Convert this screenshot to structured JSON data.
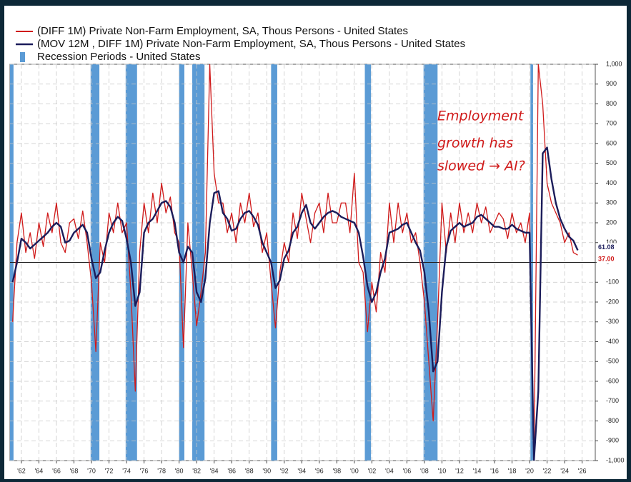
{
  "chart_data": {
    "type": "line",
    "xlim": [
      1960.7,
      2027.5
    ],
    "ylim": [
      -1000,
      1000
    ],
    "grid": true,
    "recession_name": "Recession Periods - United States",
    "recession_color": "#5b9bd5",
    "recessions": [
      [
        1960.3,
        1961.1
      ],
      [
        1969.9,
        1970.9
      ],
      [
        1973.9,
        1975.2
      ],
      [
        1980.0,
        1980.6
      ],
      [
        1981.5,
        1982.9
      ],
      [
        1990.5,
        1991.2
      ],
      [
        2001.2,
        2001.9
      ],
      [
        2007.9,
        2009.5
      ],
      [
        2020.1,
        2020.4
      ]
    ],
    "annotation": [
      "Employment",
      "growth has",
      "slowed → AI?"
    ],
    "end_labels": [
      {
        "value": 61.08,
        "label": "61.08"
      },
      {
        "value": 37,
        "label": "37.00"
      }
    ],
    "xticks": [
      {
        "value": 1962,
        "label": "'62"
      },
      {
        "value": 1964,
        "label": "'64"
      },
      {
        "value": 1966,
        "label": "'66"
      },
      {
        "value": 1968,
        "label": "'68"
      },
      {
        "value": 1970,
        "label": "'70"
      },
      {
        "value": 1972,
        "label": "'72"
      },
      {
        "value": 1974,
        "label": "'74"
      },
      {
        "value": 1976,
        "label": "'76"
      },
      {
        "value": 1978,
        "label": "'78"
      },
      {
        "value": 1980,
        "label": "'80"
      },
      {
        "value": 1982,
        "label": "'82"
      },
      {
        "value": 1984,
        "label": "'84"
      },
      {
        "value": 1986,
        "label": "'86"
      },
      {
        "value": 1988,
        "label": "'88"
      },
      {
        "value": 1990,
        "label": "'90"
      },
      {
        "value": 1992,
        "label": "'92"
      },
      {
        "value": 1994,
        "label": "'94"
      },
      {
        "value": 1996,
        "label": "'96"
      },
      {
        "value": 1998,
        "label": "'98"
      },
      {
        "value": 2000,
        "label": "'00"
      },
      {
        "value": 2002,
        "label": "'02"
      },
      {
        "value": 2004,
        "label": "'04"
      },
      {
        "value": 2006,
        "label": "'06"
      },
      {
        "value": 2008,
        "label": "'08"
      },
      {
        "value": 2010,
        "label": "'10"
      },
      {
        "value": 2012,
        "label": "'12"
      },
      {
        "value": 2014,
        "label": "'14"
      },
      {
        "value": 2016,
        "label": "'16"
      },
      {
        "value": 2018,
        "label": "'18"
      },
      {
        "value": 2020,
        "label": "'20"
      },
      {
        "value": 2022,
        "label": "'22"
      },
      {
        "value": 2024,
        "label": "'24"
      },
      {
        "value": 2026,
        "label": "'26"
      }
    ],
    "yticks": [
      {
        "value": -1000,
        "label": "-1,000"
      },
      -900,
      -800,
      -700,
      -600,
      -500,
      -400,
      -300,
      -200,
      -100,
      0,
      100,
      200,
      300,
      400,
      500,
      600,
      700,
      800,
      900,
      {
        "value": 1000,
        "label": "1,000"
      }
    ],
    "x": [
      1961,
      1961.5,
      1962,
      1962.5,
      1963,
      1963.5,
      1964,
      1964.5,
      1965,
      1965.5,
      1966,
      1966.5,
      1967,
      1967.5,
      1968,
      1968.5,
      1969,
      1969.5,
      1970,
      1970.5,
      1971,
      1971.5,
      1972,
      1972.5,
      1973,
      1973.5,
      1974,
      1974.5,
      1975,
      1975.5,
      1976,
      1976.5,
      1977,
      1977.5,
      1978,
      1978.5,
      1979,
      1979.5,
      1980,
      1980.5,
      1981,
      1981.5,
      1982,
      1982.5,
      1983,
      1983.5,
      1984,
      1984.5,
      1985,
      1985.5,
      1986,
      1986.5,
      1987,
      1987.5,
      1988,
      1988.5,
      1989,
      1989.5,
      1990,
      1990.5,
      1991,
      1991.5,
      1992,
      1992.5,
      1993,
      1993.5,
      1994,
      1994.5,
      1995,
      1995.5,
      1996,
      1996.5,
      1997,
      1997.5,
      1998,
      1998.5,
      1999,
      1999.5,
      2000,
      2000.5,
      2001,
      2001.5,
      2002,
      2002.5,
      2003,
      2003.5,
      2004,
      2004.5,
      2005,
      2005.5,
      2006,
      2006.5,
      2007,
      2007.5,
      2008,
      2008.5,
      2009,
      2009.5,
      2010,
      2010.5,
      2011,
      2011.5,
      2012,
      2012.5,
      2013,
      2013.5,
      2014,
      2014.5,
      2015,
      2015.5,
      2016,
      2016.5,
      2017,
      2017.5,
      2018,
      2018.5,
      2019,
      2019.5,
      2020,
      2020.5,
      2021,
      2021.5,
      2022,
      2022.5,
      2023,
      2023.5,
      2024,
      2024.5,
      2025,
      2025.5
    ],
    "series": [
      {
        "name": "(DIFF 1M) Private Non-Farm Employment, SA, Thous Persons - United States",
        "color": "#d01a1a",
        "width": 1.3,
        "values": [
          -300,
          100,
          250,
          50,
          150,
          20,
          200,
          80,
          250,
          150,
          300,
          100,
          50,
          200,
          220,
          120,
          260,
          100,
          -100,
          -450,
          100,
          0,
          250,
          150,
          300,
          150,
          200,
          -150,
          -650,
          50,
          300,
          150,
          350,
          200,
          400,
          250,
          330,
          150,
          100,
          -430,
          200,
          -50,
          -320,
          -150,
          50,
          1000,
          450,
          300,
          300,
          150,
          250,
          100,
          300,
          200,
          350,
          180,
          250,
          50,
          150,
          -100,
          -330,
          -50,
          100,
          0,
          250,
          120,
          350,
          220,
          100,
          250,
          300,
          150,
          350,
          200,
          200,
          300,
          300,
          150,
          450,
          0,
          -50,
          -350,
          -100,
          -250,
          50,
          -50,
          300,
          100,
          300,
          150,
          250,
          100,
          150,
          0,
          -200,
          -500,
          -800,
          -300,
          300,
          50,
          250,
          100,
          300,
          150,
          250,
          150,
          300,
          200,
          280,
          150,
          200,
          250,
          220,
          120,
          250,
          150,
          200,
          100,
          250,
          -1000,
          1000,
          800,
          400,
          300,
          250,
          200,
          100,
          150,
          50,
          37
        ]
      },
      {
        "name": "(MOV 12M , DIFF 1M) Private Non-Farm Employment, SA, Thous Persons - United States",
        "color": "#1b1c5a",
        "width": 2.4,
        "values": [
          -100,
          0,
          120,
          100,
          70,
          90,
          110,
          130,
          150,
          180,
          200,
          180,
          100,
          110,
          150,
          170,
          190,
          150,
          20,
          -80,
          -50,
          60,
          150,
          200,
          230,
          210,
          120,
          0,
          -220,
          -150,
          150,
          200,
          220,
          260,
          300,
          310,
          280,
          200,
          50,
          0,
          80,
          50,
          -150,
          -200,
          -80,
          200,
          350,
          360,
          250,
          220,
          160,
          170,
          220,
          250,
          260,
          230,
          190,
          100,
          50,
          0,
          -130,
          -90,
          20,
          60,
          150,
          180,
          250,
          290,
          200,
          170,
          200,
          230,
          250,
          260,
          250,
          230,
          220,
          210,
          200,
          150,
          30,
          -120,
          -200,
          -150,
          -50,
          20,
          150,
          160,
          170,
          190,
          200,
          150,
          100,
          60,
          -50,
          -250,
          -550,
          -500,
          -150,
          80,
          160,
          180,
          200,
          180,
          190,
          200,
          230,
          240,
          220,
          200,
          180,
          180,
          170,
          170,
          190,
          170,
          160,
          150,
          150,
          -1000,
          -650,
          550,
          580,
          420,
          300,
          220,
          170,
          130,
          110,
          61.08
        ]
      }
    ]
  }
}
